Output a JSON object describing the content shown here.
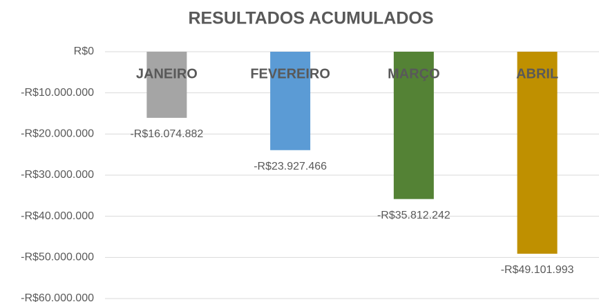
{
  "chart_data": {
    "type": "bar",
    "title": "RESULTADOS ACUMULADOS",
    "categories": [
      "JANEIRO",
      "FEVEREIRO",
      "MARÇO",
      "ABRIL"
    ],
    "values": [
      -16074882,
      -23927466,
      -35812242,
      -49101993
    ],
    "value_labels": [
      "-R$16.074.882",
      "-R$23.927.466",
      "-R$35.812.242",
      "-R$49.101.993"
    ],
    "colors": [
      "#a5a5a5",
      "#5b9bd5",
      "#548235",
      "#bf9000"
    ],
    "ylim": [
      -60000000,
      0
    ],
    "yticks": [
      {
        "value": 0,
        "label": "R$0"
      },
      {
        "value": -10000000,
        "label": "-R$10.000.000"
      },
      {
        "value": -20000000,
        "label": "-R$20.000.000"
      },
      {
        "value": -30000000,
        "label": "-R$30.000.000"
      },
      {
        "value": -40000000,
        "label": "-R$40.000.000"
      },
      {
        "value": -50000000,
        "label": "-R$50.000.000"
      },
      {
        "value": -60000000,
        "label": "-R$60.000.000"
      }
    ],
    "grid": true
  }
}
